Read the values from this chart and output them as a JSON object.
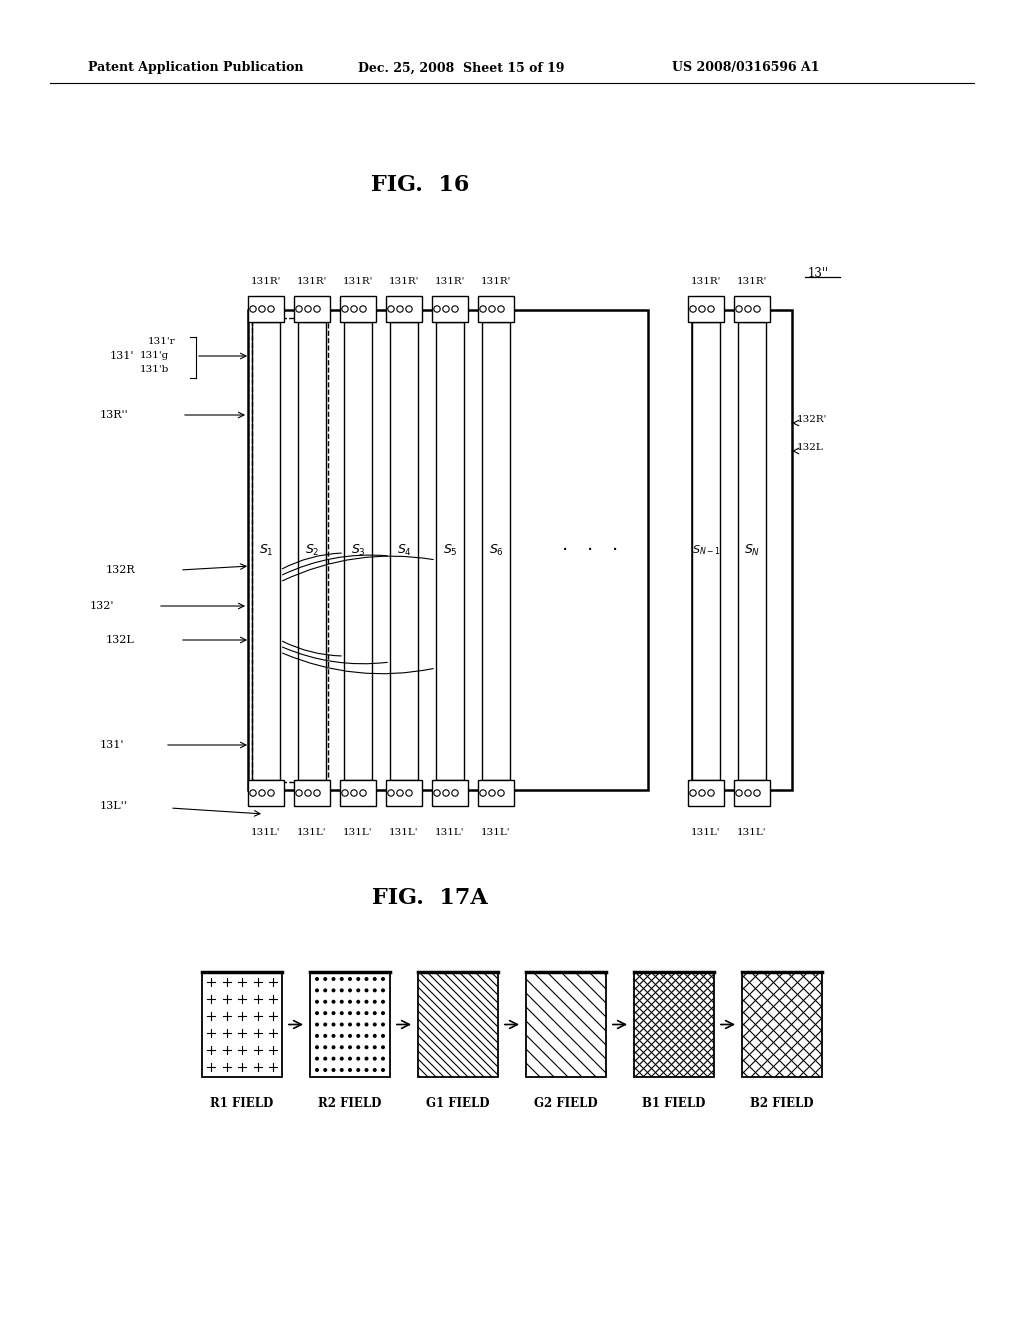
{
  "header_left": "Patent Application Publication",
  "header_mid": "Dec. 25, 2008  Sheet 15 of 19",
  "header_right": "US 2008/0316596 A1",
  "fig16_title": "FIG.  16",
  "fig17a_title": "FIG.  17A",
  "bg_color": "#ffffff",
  "line_color": "#000000",
  "fields": [
    "R1 FIELD",
    "R2 FIELD",
    "G1 FIELD",
    "G2 FIELD",
    "B1 FIELD",
    "B2 FIELD"
  ]
}
